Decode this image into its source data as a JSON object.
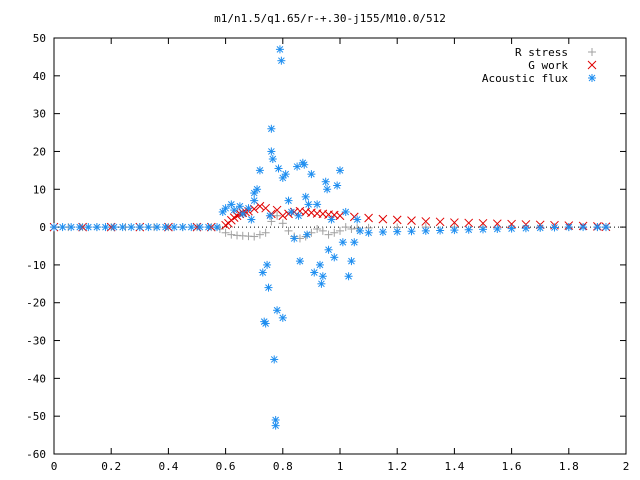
{
  "chart_data": {
    "type": "scatter",
    "title": "m1/n1.5/q1.65/r-+.30-j155/M10.0/512",
    "xlabel": "",
    "ylabel": "",
    "xlim": [
      0,
      2
    ],
    "ylim": [
      -60,
      50
    ],
    "x_ticks": [
      0,
      0.2,
      0.4,
      0.6,
      0.8,
      1,
      1.2,
      1.4,
      1.6,
      1.8,
      2
    ],
    "x_tick_labels": [
      "0",
      "0.2",
      "0.4",
      "0.6",
      "0.8",
      "1",
      "1.2",
      "1.4",
      "1.6",
      "1.8",
      "2"
    ],
    "y_ticks": [
      -60,
      -50,
      -40,
      -30,
      -20,
      -10,
      0,
      10,
      20,
      30,
      40,
      50
    ],
    "y_tick_labels": [
      "-60",
      "-50",
      "-40",
      "-30",
      "-20",
      "-10",
      "0",
      "10",
      "20",
      "30",
      "40",
      "50"
    ],
    "legend_position": "top-right",
    "series": [
      {
        "name": "R stress",
        "marker": "plus",
        "color": "#a0a0a0",
        "points": [
          [
            0.0,
            0.0
          ],
          [
            0.05,
            0.0
          ],
          [
            0.1,
            0.0
          ],
          [
            0.15,
            0.0
          ],
          [
            0.2,
            0.0
          ],
          [
            0.25,
            0.0
          ],
          [
            0.3,
            0.0
          ],
          [
            0.35,
            0.0
          ],
          [
            0.4,
            0.0
          ],
          [
            0.45,
            0.0
          ],
          [
            0.5,
            0.0
          ],
          [
            0.55,
            0.0
          ],
          [
            0.58,
            -0.5
          ],
          [
            0.6,
            -1.5
          ],
          [
            0.62,
            -2.0
          ],
          [
            0.64,
            -2.2
          ],
          [
            0.66,
            -2.3
          ],
          [
            0.68,
            -2.4
          ],
          [
            0.7,
            -2.5
          ],
          [
            0.72,
            -2.0
          ],
          [
            0.74,
            -1.5
          ],
          [
            0.76,
            1.5
          ],
          [
            0.78,
            3.0
          ],
          [
            0.8,
            1.0
          ],
          [
            0.82,
            -1.0
          ],
          [
            0.84,
            -2.5
          ],
          [
            0.86,
            -3.0
          ],
          [
            0.88,
            -2.5
          ],
          [
            0.9,
            -1.5
          ],
          [
            0.92,
            -0.5
          ],
          [
            0.94,
            -1.0
          ],
          [
            0.96,
            -2.0
          ],
          [
            0.98,
            -1.5
          ],
          [
            1.0,
            -1.0
          ],
          [
            1.02,
            0.0
          ],
          [
            1.04,
            -0.5
          ],
          [
            1.06,
            -0.3
          ],
          [
            1.1,
            -0.2
          ],
          [
            1.2,
            -0.1
          ],
          [
            1.3,
            0.0
          ],
          [
            1.4,
            0.0
          ],
          [
            1.5,
            0.0
          ],
          [
            1.6,
            0.0
          ],
          [
            1.7,
            0.0
          ],
          [
            1.8,
            0.0
          ],
          [
            1.9,
            0.0
          ],
          [
            1.93,
            0.0
          ]
        ]
      },
      {
        "name": "G work",
        "marker": "cross",
        "color": "#e00000",
        "points": [
          [
            0.0,
            0.0
          ],
          [
            0.1,
            0.0
          ],
          [
            0.2,
            0.0
          ],
          [
            0.3,
            0.0
          ],
          [
            0.4,
            0.0
          ],
          [
            0.5,
            0.0
          ],
          [
            0.55,
            0.0
          ],
          [
            0.6,
            0.5
          ],
          [
            0.61,
            1.0
          ],
          [
            0.62,
            1.8
          ],
          [
            0.63,
            2.5
          ],
          [
            0.64,
            3.0
          ],
          [
            0.65,
            3.5
          ],
          [
            0.66,
            3.8
          ],
          [
            0.67,
            4.0
          ],
          [
            0.68,
            4.2
          ],
          [
            0.7,
            4.8
          ],
          [
            0.72,
            5.5
          ],
          [
            0.74,
            5.0
          ],
          [
            0.76,
            3.5
          ],
          [
            0.78,
            4.5
          ],
          [
            0.8,
            3.0
          ],
          [
            0.82,
            3.5
          ],
          [
            0.84,
            4.0
          ],
          [
            0.86,
            4.2
          ],
          [
            0.88,
            4.0
          ],
          [
            0.9,
            3.8
          ],
          [
            0.92,
            3.6
          ],
          [
            0.94,
            3.5
          ],
          [
            0.96,
            3.3
          ],
          [
            0.98,
            3.2
          ],
          [
            1.0,
            3.0
          ],
          [
            1.05,
            2.7
          ],
          [
            1.1,
            2.4
          ],
          [
            1.15,
            2.1
          ],
          [
            1.2,
            1.9
          ],
          [
            1.25,
            1.7
          ],
          [
            1.3,
            1.5
          ],
          [
            1.35,
            1.4
          ],
          [
            1.4,
            1.2
          ],
          [
            1.45,
            1.1
          ],
          [
            1.5,
            1.0
          ],
          [
            1.55,
            0.9
          ],
          [
            1.6,
            0.8
          ],
          [
            1.65,
            0.7
          ],
          [
            1.7,
            0.6
          ],
          [
            1.75,
            0.5
          ],
          [
            1.8,
            0.4
          ],
          [
            1.85,
            0.3
          ],
          [
            1.9,
            0.2
          ],
          [
            1.93,
            0.1
          ]
        ]
      },
      {
        "name": "Acoustic flux",
        "marker": "star",
        "color": "#1e8ef0",
        "points": [
          [
            0.0,
            0.0
          ],
          [
            0.03,
            0.0
          ],
          [
            0.06,
            0.0
          ],
          [
            0.09,
            0.0
          ],
          [
            0.12,
            0.0
          ],
          [
            0.15,
            0.0
          ],
          [
            0.18,
            0.0
          ],
          [
            0.21,
            0.0
          ],
          [
            0.24,
            0.0
          ],
          [
            0.27,
            0.0
          ],
          [
            0.3,
            0.0
          ],
          [
            0.33,
            0.0
          ],
          [
            0.36,
            0.0
          ],
          [
            0.39,
            0.0
          ],
          [
            0.42,
            0.0
          ],
          [
            0.45,
            0.0
          ],
          [
            0.48,
            0.0
          ],
          [
            0.51,
            0.0
          ],
          [
            0.54,
            0.0
          ],
          [
            0.57,
            0.0
          ],
          [
            0.59,
            4.0
          ],
          [
            0.6,
            5.0
          ],
          [
            0.62,
            6.0
          ],
          [
            0.63,
            4.5
          ],
          [
            0.65,
            5.5
          ],
          [
            0.66,
            3.5
          ],
          [
            0.68,
            5.0
          ],
          [
            0.69,
            2.0
          ],
          [
            0.7,
            9.0
          ],
          [
            0.7,
            7.0
          ],
          [
            0.71,
            10.0
          ],
          [
            0.72,
            15.0
          ],
          [
            0.73,
            -12.0
          ],
          [
            0.735,
            -25.0
          ],
          [
            0.74,
            -25.5
          ],
          [
            0.745,
            -10.0
          ],
          [
            0.75,
            -16.0
          ],
          [
            0.755,
            3.0
          ],
          [
            0.76,
            26.0
          ],
          [
            0.76,
            20.0
          ],
          [
            0.765,
            18.0
          ],
          [
            0.77,
            -35.0
          ],
          [
            0.775,
            -51.0
          ],
          [
            0.775,
            -52.5
          ],
          [
            0.78,
            -22.0
          ],
          [
            0.785,
            15.5
          ],
          [
            0.79,
            47.0
          ],
          [
            0.795,
            44.0
          ],
          [
            0.8,
            13.0
          ],
          [
            0.8,
            -24.0
          ],
          [
            0.81,
            14.0
          ],
          [
            0.82,
            7.0
          ],
          [
            0.83,
            4.0
          ],
          [
            0.84,
            -3.0
          ],
          [
            0.85,
            16.0
          ],
          [
            0.855,
            3.0
          ],
          [
            0.86,
            -9.0
          ],
          [
            0.87,
            17.0
          ],
          [
            0.875,
            16.5
          ],
          [
            0.88,
            8.0
          ],
          [
            0.885,
            -2.0
          ],
          [
            0.89,
            6.0
          ],
          [
            0.9,
            14.0
          ],
          [
            0.91,
            -12.0
          ],
          [
            0.92,
            6.0
          ],
          [
            0.93,
            -10.0
          ],
          [
            0.935,
            -15.0
          ],
          [
            0.94,
            -13.0
          ],
          [
            0.95,
            12.0
          ],
          [
            0.955,
            10.0
          ],
          [
            0.96,
            -6.0
          ],
          [
            0.97,
            2.0
          ],
          [
            0.98,
            -8.0
          ],
          [
            0.99,
            11.0
          ],
          [
            1.0,
            15.0
          ],
          [
            1.01,
            -4.0
          ],
          [
            1.02,
            4.0
          ],
          [
            1.03,
            -13.0
          ],
          [
            1.04,
            -9.0
          ],
          [
            1.05,
            -4.0
          ],
          [
            1.06,
            2.0
          ],
          [
            1.07,
            -1.0
          ],
          [
            1.1,
            -1.5
          ],
          [
            1.15,
            -1.3
          ],
          [
            1.2,
            -1.2
          ],
          [
            1.25,
            -1.1
          ],
          [
            1.3,
            -1.0
          ],
          [
            1.35,
            -0.9
          ],
          [
            1.4,
            -0.8
          ],
          [
            1.45,
            -0.7
          ],
          [
            1.5,
            -0.6
          ],
          [
            1.55,
            -0.5
          ],
          [
            1.6,
            -0.4
          ],
          [
            1.65,
            -0.3
          ],
          [
            1.7,
            -0.2
          ],
          [
            1.75,
            -0.1
          ],
          [
            1.8,
            0.0
          ],
          [
            1.85,
            0.0
          ],
          [
            1.9,
            0.0
          ],
          [
            1.93,
            0.0
          ]
        ]
      }
    ]
  }
}
